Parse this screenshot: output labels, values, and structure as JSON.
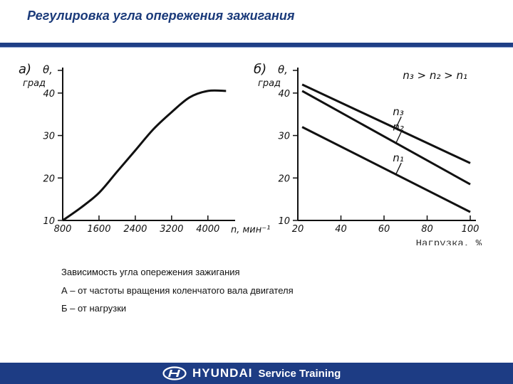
{
  "slide": {
    "title": "Регулировка угла опережения зажигания",
    "brand": "HYUNDAI",
    "brand_sub": "Service Training",
    "colors": {
      "header_rule": "#1f3f86",
      "footer": "#1d3c84",
      "title": "#1a3a7a"
    }
  },
  "caption": {
    "line1": "Зависимость угла опережения зажигания",
    "line2": "А – от частоты вращения коленчатого вала двигателя",
    "line3": "Б – от нагрузки"
  },
  "chart_data": [
    {
      "type": "line",
      "panel_label": "а)",
      "ylabel": "θ, град",
      "xlabel": "n, мин⁻¹",
      "x_ticks": [
        "800",
        "1600",
        "2400",
        "3200",
        "4000"
      ],
      "y_ticks": [
        "10",
        "20",
        "30",
        "40"
      ],
      "xlim": [
        800,
        4600
      ],
      "ylim": [
        10,
        45
      ],
      "series": [
        {
          "x": [
            800,
            1200,
            1600,
            2000,
            2400,
            2800,
            3200,
            3600,
            4000,
            4400
          ],
          "y": [
            10,
            13,
            16.5,
            21.5,
            26.5,
            31.5,
            35.5,
            39,
            40.5,
            40.5
          ]
        }
      ]
    },
    {
      "type": "line",
      "panel_label": "б)",
      "ylabel": "θ, град",
      "xlabel": "Нагрузка, %",
      "annotation": "n₃ > n₂ > n₁",
      "x_ticks": [
        "20",
        "40",
        "60",
        "80",
        "100"
      ],
      "y_ticks": [
        "10",
        "20",
        "30",
        "40"
      ],
      "xlim": [
        20,
        100
      ],
      "ylim": [
        10,
        45
      ],
      "series": [
        {
          "name": "n₃",
          "x": [
            22,
            100
          ],
          "y": [
            42,
            23.5
          ]
        },
        {
          "name": "n₂",
          "x": [
            22,
            100
          ],
          "y": [
            40.5,
            18.5
          ]
        },
        {
          "name": "n₁",
          "x": [
            22,
            100
          ],
          "y": [
            32,
            12
          ]
        }
      ]
    }
  ]
}
